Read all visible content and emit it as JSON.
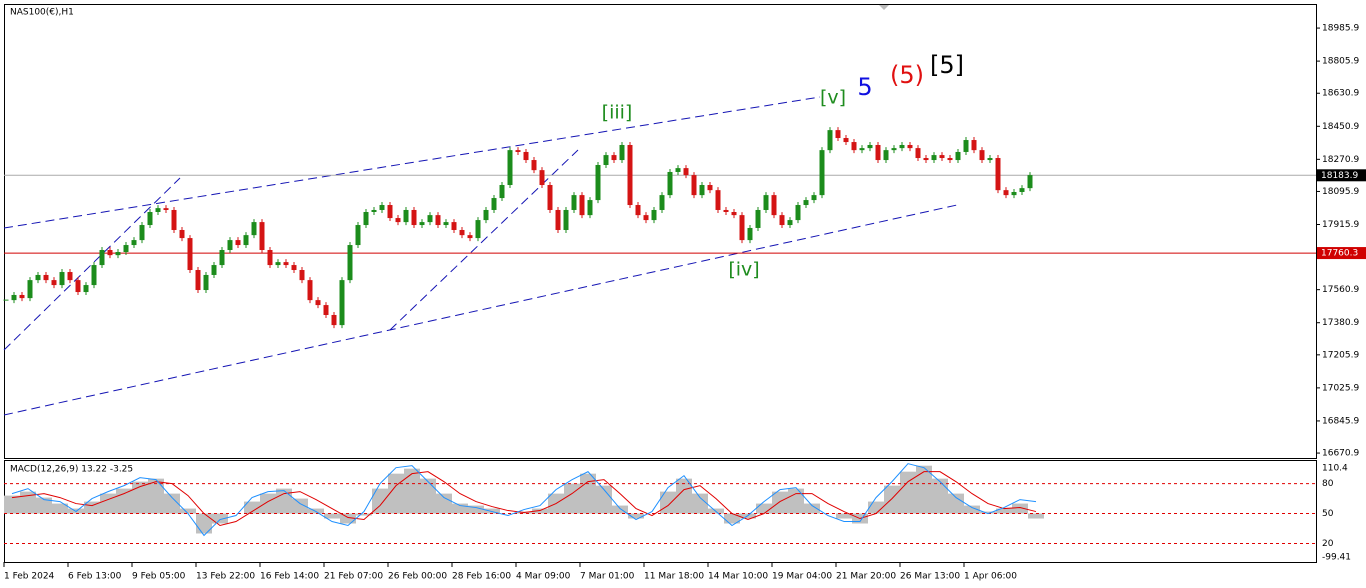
{
  "chart_data": [
    {
      "type": "candlestick",
      "title": "NAS100(€),H1",
      "categories": [
        "1 Feb 2024",
        null,
        null,
        null,
        null,
        null,
        null,
        null,
        "6 Feb 13:00",
        null,
        null,
        null,
        null,
        null,
        null,
        null,
        "9 Feb 05:00",
        null,
        null,
        null,
        null,
        null,
        null,
        null,
        "13 Feb 22:00",
        null,
        null,
        null,
        null,
        null,
        null,
        null,
        "16 Feb 14:00",
        null,
        null,
        null,
        null,
        null,
        null,
        null,
        "21 Feb 07:00",
        null,
        null,
        null,
        null,
        null,
        null,
        null,
        "26 Feb 00:00",
        null,
        null,
        null,
        null,
        null,
        null,
        null,
        "28 Feb 16:00",
        null,
        null,
        null,
        null,
        null,
        null,
        null,
        "4 Mar 09:00",
        null,
        null,
        null,
        null,
        null,
        null,
        null,
        "7 Mar 01:00",
        null,
        null,
        null,
        null,
        null,
        null,
        null,
        "11 Mar 18:00",
        null,
        null,
        null,
        null,
        null,
        null,
        null,
        "14 Mar 10:00",
        null,
        null,
        null,
        null,
        null,
        null,
        null,
        "19 Mar 04:00",
        null,
        null,
        null,
        null,
        null,
        null,
        null,
        "21 Mar 20:00",
        null,
        null,
        null,
        null,
        null,
        null,
        null,
        "26 Mar 13:00",
        null,
        null,
        null,
        null,
        null,
        null,
        null,
        "1 Apr 06:00",
        null,
        null,
        null,
        null,
        null,
        null,
        null,
        null
      ],
      "values": [
        17504,
        17532,
        17515,
        17613,
        17641,
        17613,
        17586,
        17657,
        17613,
        17548,
        17586,
        17695,
        17777,
        17749,
        17766,
        17804,
        17831,
        17913,
        17984,
        18005,
        17995,
        17886,
        17842,
        17668,
        17559,
        17641,
        17695,
        17777,
        17831,
        17804,
        17858,
        17929,
        17777,
        17695,
        17711,
        17695,
        17668,
        17613,
        17504,
        17477,
        17423,
        17368,
        17613,
        17804,
        17913,
        17984,
        17995,
        18022,
        17951,
        17929,
        17995,
        17913,
        17929,
        17967,
        17913,
        17929,
        17886,
        17858,
        17842,
        17940,
        17995,
        18060,
        18131,
        18321,
        18311,
        18267,
        18212,
        18131,
        17995,
        17886,
        17995,
        18076,
        17967,
        18049,
        18240,
        18294,
        18267,
        18349,
        18022,
        17967,
        17940,
        17995,
        18076,
        18202,
        18223,
        18185,
        18076,
        18131,
        18103,
        17995,
        17984,
        17967,
        17831,
        17897,
        17995,
        18076,
        17967,
        17913,
        17940,
        18022,
        18049,
        18076,
        18321,
        18430,
        18387,
        18365,
        18321,
        18332,
        18349,
        18267,
        18321,
        18332,
        18349,
        18332,
        18278,
        18267,
        18294,
        18278,
        18267,
        18311,
        18376,
        18321,
        18267,
        18278,
        18103,
        18076,
        18093,
        18114,
        18185
      ],
      "up_color": "#1c8c1c",
      "down_color": "#d41414",
      "ylim": [
        16644,
        19117
      ],
      "yticks": [
        16670.9,
        16845.9,
        17025.9,
        17205.9,
        17380.9,
        17560.9,
        17915.9,
        18095.9,
        18270.9,
        18450.9,
        18630.9,
        18805.9,
        18985.9
      ],
      "last_price": 18183.9,
      "level": 17760.3,
      "level_color": "#d00000",
      "annotations": [
        {
          "text": "[iii]",
          "color": "#1e8c1e"
        },
        {
          "text": "[iv]",
          "color": "#1e8c1e"
        },
        {
          "text": "[v]",
          "color": "#1e8c1e"
        },
        {
          "text": "5",
          "color": "#1010e0"
        },
        {
          "text": "(5)",
          "color": "#e01010"
        },
        {
          "text": "[5]",
          "color": "#000000"
        }
      ]
    },
    {
      "type": "macd",
      "title": "MACD(12,26,9) 13.22 -3.25",
      "histogram": [
        68,
        72,
        66,
        60,
        55,
        62,
        70,
        75,
        82,
        85,
        70,
        55,
        30,
        40,
        50,
        62,
        70,
        75,
        65,
        55,
        45,
        40,
        48,
        75,
        90,
        95,
        85,
        70,
        60,
        58,
        55,
        50,
        52,
        55,
        70,
        80,
        90,
        78,
        58,
        45,
        50,
        72,
        85,
        70,
        55,
        40,
        45,
        60,
        72,
        75,
        60,
        50,
        45,
        40,
        62,
        78,
        92,
        98,
        85,
        70,
        58,
        52,
        55,
        60,
        45
      ],
      "macd": [
        70,
        75,
        64,
        62,
        52,
        65,
        72,
        78,
        86,
        84,
        66,
        50,
        28,
        44,
        48,
        66,
        72,
        73,
        60,
        52,
        42,
        38,
        52,
        80,
        96,
        98,
        82,
        66,
        58,
        56,
        52,
        48,
        54,
        58,
        74,
        84,
        92,
        74,
        55,
        44,
        52,
        76,
        88,
        66,
        52,
        38,
        48,
        62,
        74,
        76,
        58,
        48,
        42,
        42,
        66,
        82,
        100,
        96,
        82,
        66,
        56,
        50,
        56,
        64,
        62
      ],
      "signal": [
        66,
        68,
        70,
        66,
        60,
        58,
        64,
        70,
        77,
        82,
        80,
        68,
        50,
        38,
        42,
        52,
        62,
        70,
        72,
        64,
        55,
        46,
        44,
        58,
        78,
        90,
        92,
        82,
        70,
        62,
        57,
        53,
        51,
        53,
        60,
        70,
        82,
        84,
        70,
        55,
        48,
        58,
        74,
        78,
        65,
        50,
        44,
        50,
        62,
        70,
        70,
        60,
        52,
        45,
        50,
        65,
        82,
        92,
        92,
        82,
        70,
        60,
        55,
        56,
        52
      ],
      "histogram_color": "#c0c0c0",
      "macd_color": "#1e90ff",
      "signal_color": "#e00000",
      "ylim": [
        1.4,
        102.7
      ],
      "yticks": [
        80,
        50,
        20
      ],
      "scale_labels": [
        "110.4",
        "-99.41"
      ]
    }
  ]
}
